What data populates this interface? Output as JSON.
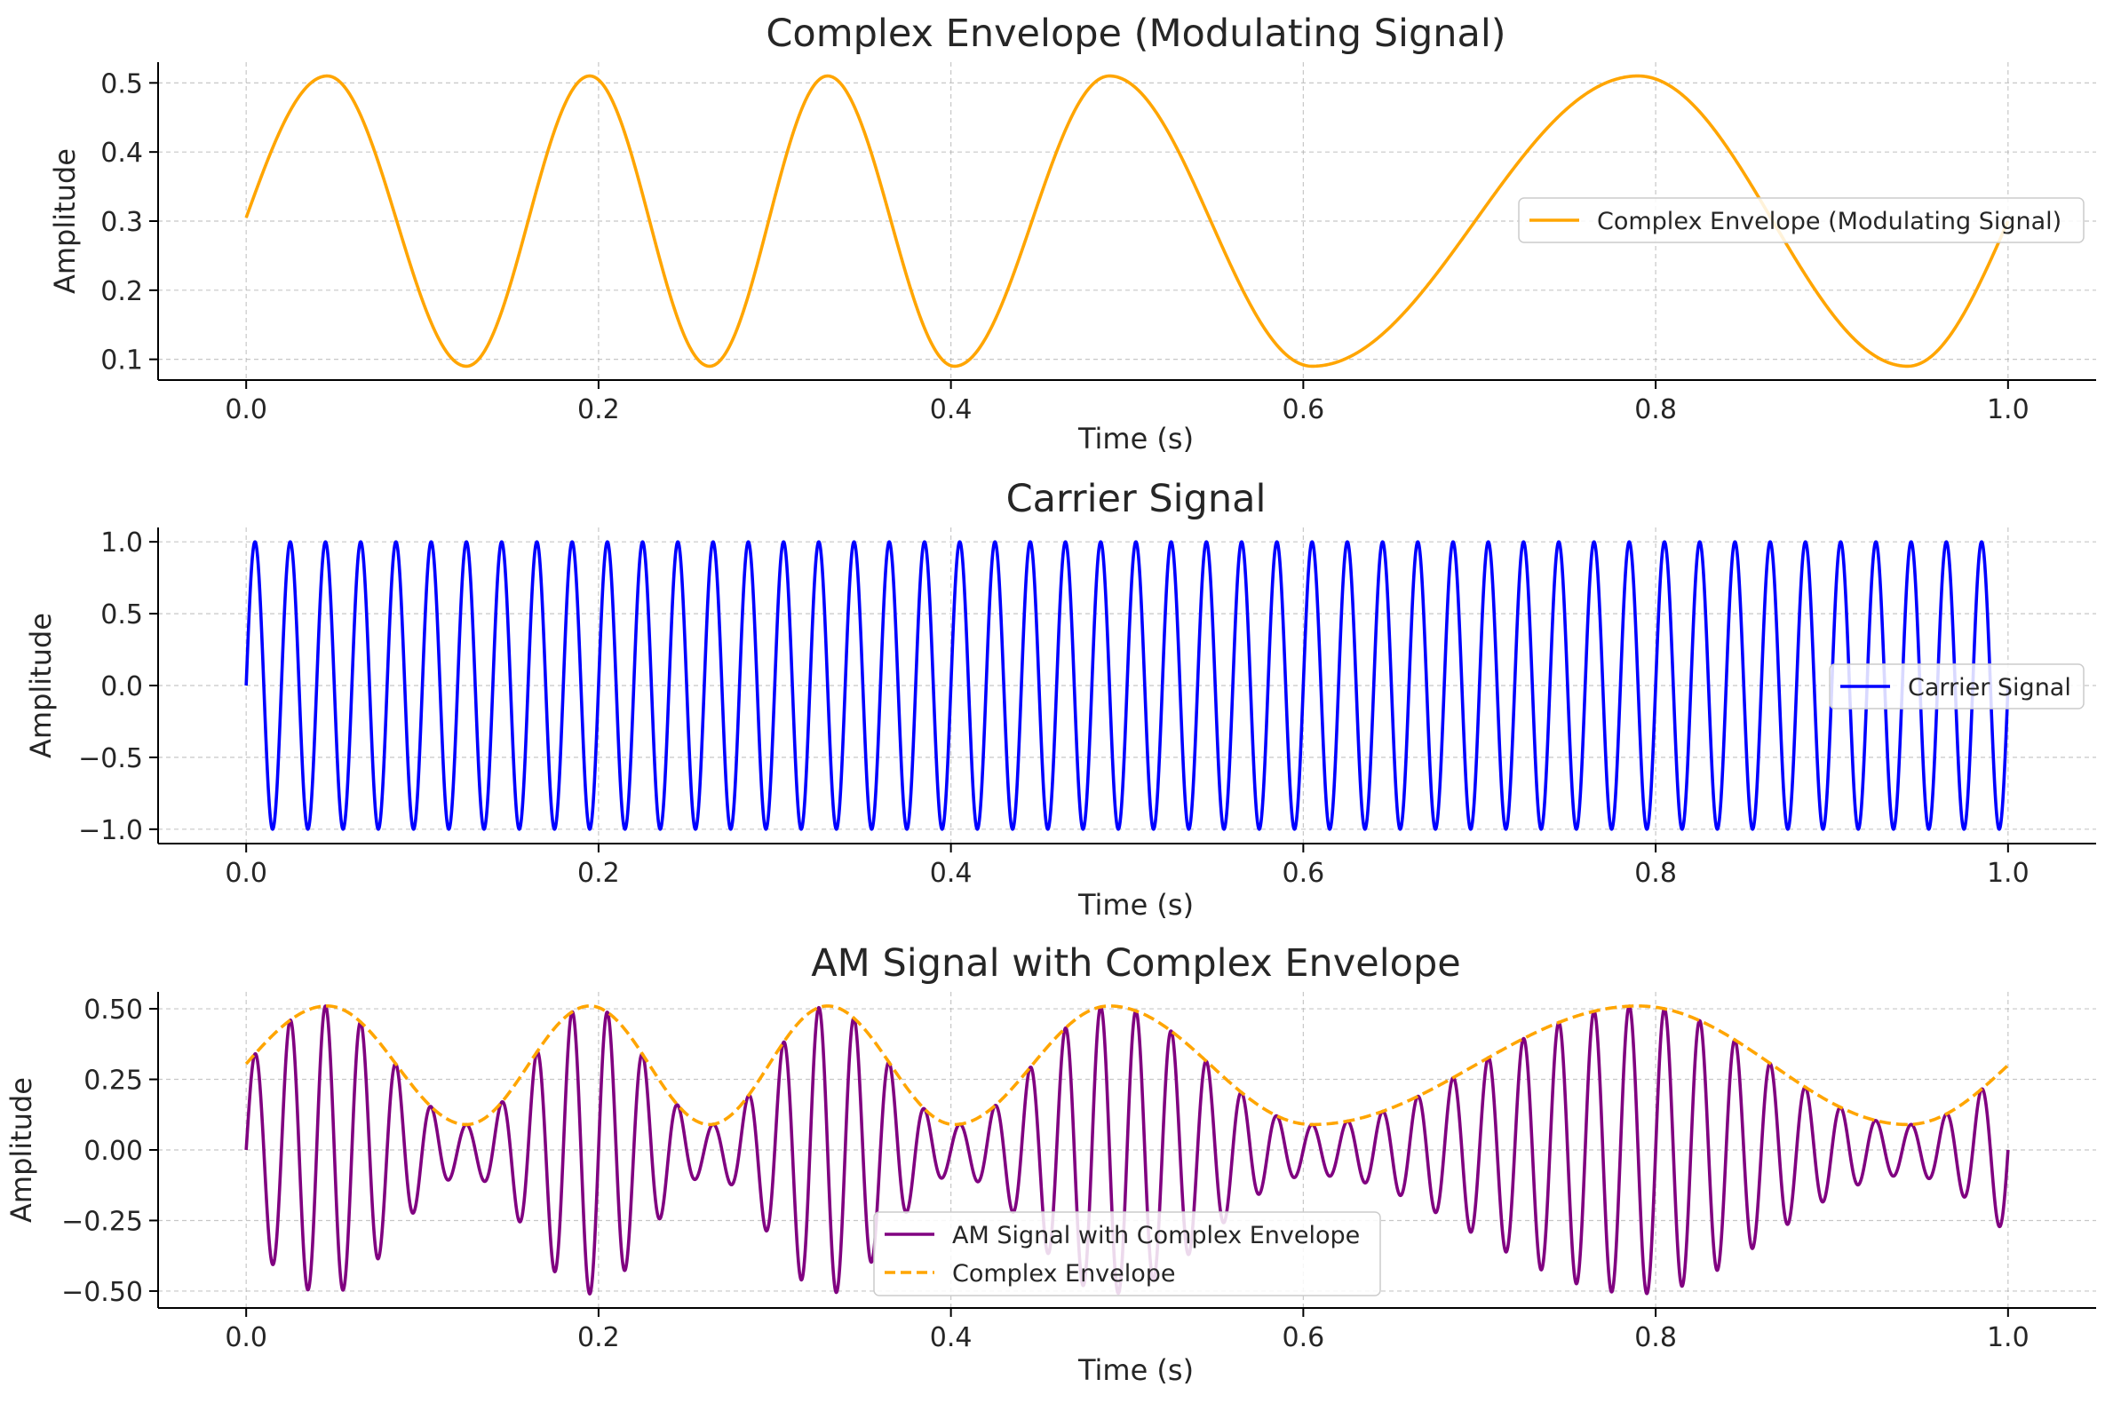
{
  "chart_data": [
    {
      "type": "line",
      "title": "Complex Envelope (Modulating Signal)",
      "xlabel": "Time (s)",
      "ylabel": "Amplitude",
      "xlim": [
        -0.05,
        1.05
      ],
      "ylim": [
        0.07,
        0.53
      ],
      "xticks": [
        0.0,
        0.2,
        0.4,
        0.6,
        0.8,
        1.0
      ],
      "xtick_labels": [
        "0.0",
        "0.2",
        "0.4",
        "0.6",
        "0.8",
        "1.0"
      ],
      "yticks": [
        0.1,
        0.2,
        0.3,
        0.4,
        0.5
      ],
      "ytick_labels": [
        "0.1",
        "0.2",
        "0.3",
        "0.4",
        "0.5"
      ],
      "grid": true,
      "legend_position": "center-right",
      "series": [
        {
          "name": "Complex Envelope (Modulating Signal)",
          "color": "#FFA500",
          "style": "solid",
          "x": [
            0.0,
            0.046,
            0.125,
            0.195,
            0.263,
            0.33,
            0.402,
            0.49,
            0.605,
            0.79,
            0.943,
            1.0
          ],
          "values": [
            0.305,
            0.51,
            0.09,
            0.51,
            0.09,
            0.51,
            0.09,
            0.51,
            0.09,
            0.51,
            0.09,
            0.3
          ]
        }
      ]
    },
    {
      "type": "line",
      "title": "Carrier Signal",
      "xlabel": "Time (s)",
      "ylabel": "Amplitude",
      "xlim": [
        -0.05,
        1.05
      ],
      "ylim": [
        -1.1,
        1.1
      ],
      "xticks": [
        0.0,
        0.2,
        0.4,
        0.6,
        0.8,
        1.0
      ],
      "xtick_labels": [
        "0.0",
        "0.2",
        "0.4",
        "0.6",
        "0.8",
        "1.0"
      ],
      "yticks": [
        1.0,
        0.5,
        0.0,
        -0.5,
        -1.0
      ],
      "ytick_labels": [
        "1.0",
        "0.5",
        "0.0",
        "−0.5",
        "−1.0"
      ],
      "grid": true,
      "legend_position": "center-right",
      "series": [
        {
          "name": "Carrier Signal",
          "color": "#0000FF",
          "style": "solid",
          "function": "sin(2*pi*50*t)",
          "frequency_hz": 50,
          "amplitude": 1.0,
          "x_range": [
            0.0,
            1.0
          ]
        }
      ]
    },
    {
      "type": "line",
      "title": "AM Signal with Complex Envelope",
      "xlabel": "Time (s)",
      "ylabel": "Amplitude",
      "xlim": [
        -0.05,
        1.05
      ],
      "ylim": [
        -0.56,
        0.56
      ],
      "xticks": [
        0.0,
        0.2,
        0.4,
        0.6,
        0.8,
        1.0
      ],
      "xtick_labels": [
        "0.0",
        "0.2",
        "0.4",
        "0.6",
        "0.8",
        "1.0"
      ],
      "yticks": [
        0.5,
        0.25,
        0.0,
        -0.25,
        -0.5
      ],
      "ytick_labels": [
        "0.50",
        "0.25",
        "0.00",
        "−0.25",
        "−0.50"
      ],
      "grid": true,
      "legend_position": "lower-center",
      "series": [
        {
          "name": "AM Signal with Complex Envelope",
          "color": "#800080",
          "style": "solid",
          "function": "envelope(t) * sin(2*pi*50*t)",
          "frequency_hz": 50,
          "x_range": [
            0.0,
            1.0
          ]
        },
        {
          "name": "Complex Envelope",
          "color": "#FFA500",
          "style": "dashed",
          "x": [
            0.0,
            0.046,
            0.125,
            0.195,
            0.263,
            0.33,
            0.402,
            0.49,
            0.605,
            0.79,
            0.943,
            1.0
          ],
          "values": [
            0.305,
            0.51,
            0.09,
            0.51,
            0.09,
            0.51,
            0.09,
            0.51,
            0.09,
            0.51,
            0.09,
            0.3
          ]
        }
      ]
    }
  ]
}
